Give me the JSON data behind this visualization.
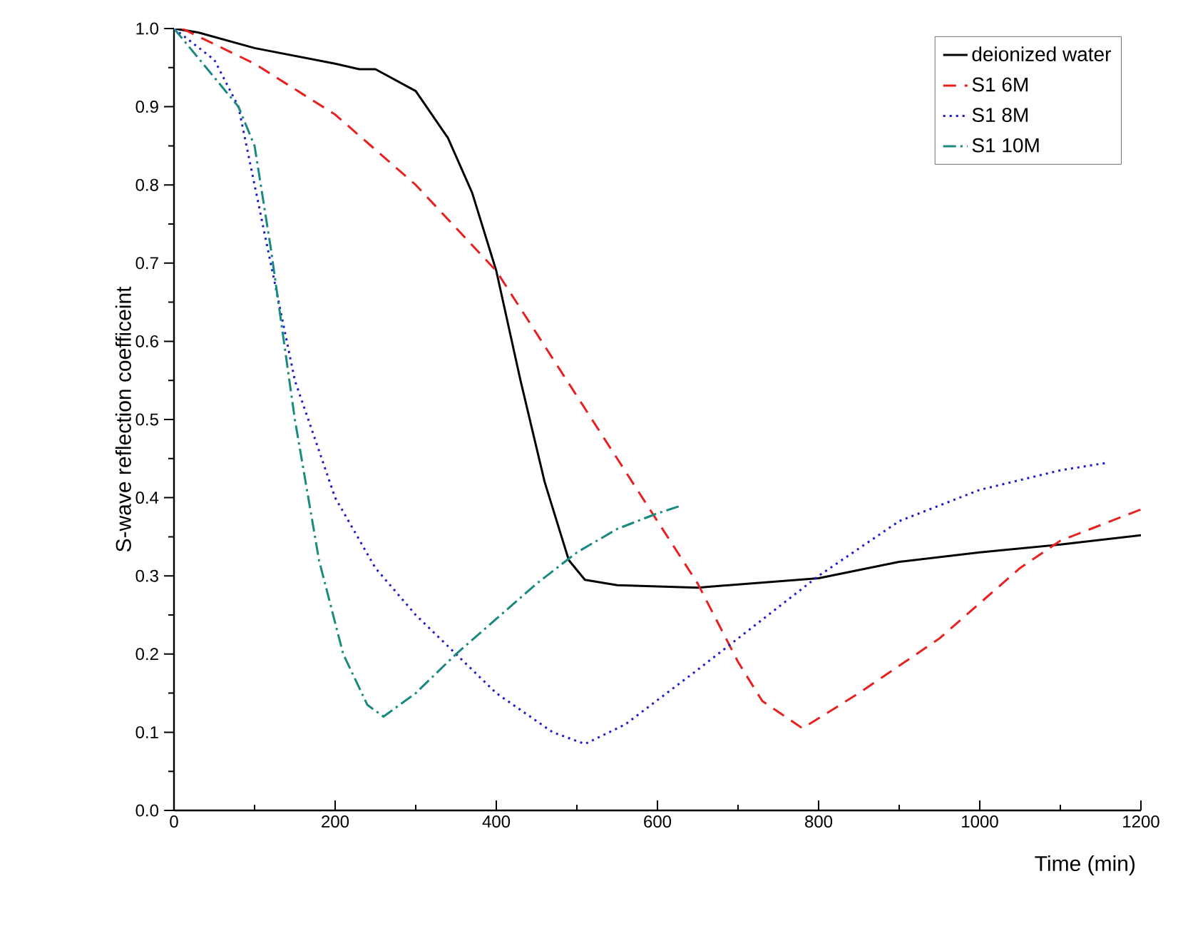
{
  "chart_data": {
    "type": "line",
    "xlabel": "Time (min)",
    "ylabel": "S-wave reflection coefficeint",
    "xlim": [
      0,
      1200
    ],
    "ylim": [
      0,
      1.0
    ],
    "xticks": [
      0,
      200,
      400,
      600,
      800,
      1000,
      1200
    ],
    "yticks": [
      {
        "value": 0,
        "label": "0.0"
      },
      {
        "value": 0.1,
        "label": "0.1"
      },
      {
        "value": 0.2,
        "label": "0.2"
      },
      {
        "value": 0.3,
        "label": "0.3"
      },
      {
        "value": 0.4,
        "label": "0.4"
      },
      {
        "value": 0.5,
        "label": "0.5"
      },
      {
        "value": 0.6,
        "label": "0.6"
      },
      {
        "value": 0.7,
        "label": "0.7"
      },
      {
        "value": 0.8,
        "label": "0.8"
      },
      {
        "value": 0.9,
        "label": "0.9"
      },
      {
        "value": 1.0,
        "label": "1.0"
      }
    ],
    "grid": false,
    "legend": "top right",
    "marker": "none",
    "series": [
      {
        "name": "deionized water",
        "color": "#000000",
        "line_style": "solid",
        "x": [
          0,
          30,
          100,
          200,
          230,
          250,
          300,
          340,
          370,
          400,
          430,
          460,
          490,
          510,
          550,
          650,
          800,
          900,
          1000,
          1100,
          1200
        ],
        "values": [
          1.0,
          0.995,
          0.975,
          0.955,
          0.948,
          0.948,
          0.92,
          0.86,
          0.79,
          0.69,
          0.55,
          0.42,
          0.32,
          0.295,
          0.288,
          0.285,
          0.297,
          0.318,
          0.33,
          0.34,
          0.352
        ]
      },
      {
        "name": "S1 6M",
        "color": "#e8201f",
        "line_style": "dashed",
        "x": [
          10,
          100,
          200,
          300,
          400,
          500,
          600,
          650,
          700,
          730,
          780,
          850,
          950,
          1050,
          1100,
          1200
        ],
        "values": [
          1.0,
          0.955,
          0.89,
          0.8,
          0.69,
          0.53,
          0.37,
          0.29,
          0.19,
          0.14,
          0.105,
          0.15,
          0.22,
          0.31,
          0.345,
          0.385
        ]
      },
      {
        "name": "S1 8M",
        "color": "#1c1ccc",
        "line_style": "dotted",
        "x": [
          0,
          50,
          80,
          110,
          150,
          200,
          250,
          300,
          400,
          470,
          510,
          560,
          650,
          750,
          800,
          900,
          1000,
          1100,
          1160
        ],
        "values": [
          1.0,
          0.96,
          0.9,
          0.75,
          0.55,
          0.4,
          0.31,
          0.25,
          0.15,
          0.1,
          0.085,
          0.11,
          0.18,
          0.26,
          0.3,
          0.37,
          0.41,
          0.435,
          0.445
        ]
      },
      {
        "name": "S1 10M",
        "color": "#1a8a80",
        "line_style": "dashdotted",
        "x": [
          0,
          40,
          80,
          100,
          120,
          150,
          180,
          210,
          240,
          260,
          300,
          350,
          400,
          450,
          500,
          550,
          600,
          630
        ],
        "values": [
          1.0,
          0.95,
          0.9,
          0.85,
          0.72,
          0.5,
          0.32,
          0.2,
          0.135,
          0.12,
          0.15,
          0.2,
          0.245,
          0.29,
          0.33,
          0.36,
          0.38,
          0.39
        ]
      }
    ]
  }
}
